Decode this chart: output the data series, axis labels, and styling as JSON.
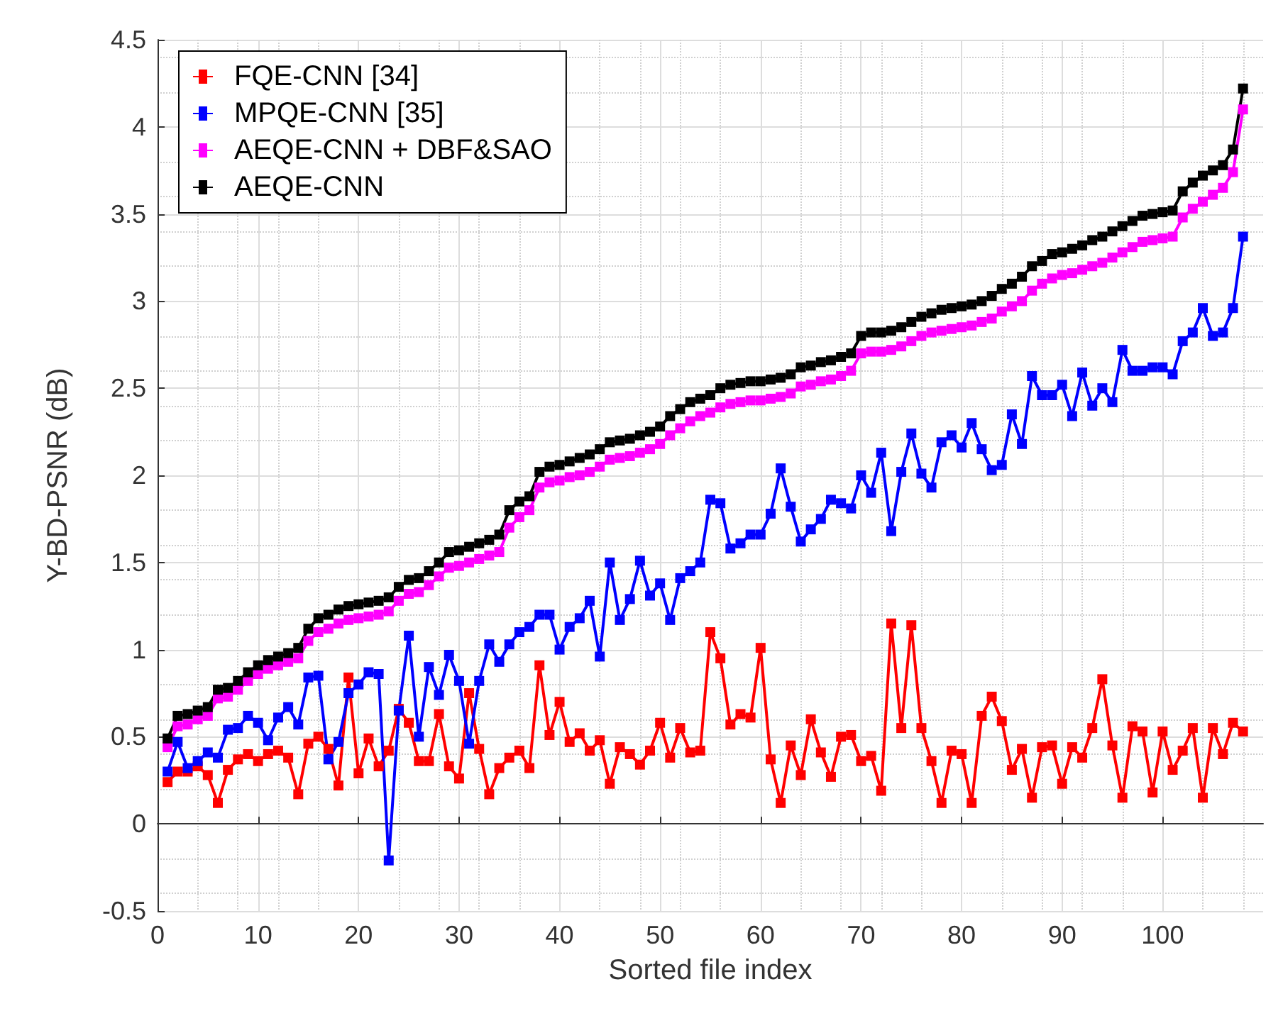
{
  "chart_data": {
    "type": "line",
    "xlabel": "Sorted file index",
    "ylabel": "Y-BD-PSNR (dB)",
    "x": [
      1,
      2,
      3,
      4,
      5,
      6,
      7,
      8,
      9,
      10,
      11,
      12,
      13,
      14,
      15,
      16,
      17,
      18,
      19,
      20,
      21,
      22,
      23,
      24,
      25,
      26,
      27,
      28,
      29,
      30,
      31,
      32,
      33,
      34,
      35,
      36,
      37,
      38,
      39,
      40,
      41,
      42,
      43,
      44,
      45,
      46,
      47,
      48,
      49,
      50,
      51,
      52,
      53,
      54,
      55,
      56,
      57,
      58,
      59,
      60,
      61,
      62,
      63,
      64,
      65,
      66,
      67,
      68,
      69,
      70,
      71,
      72,
      73,
      74,
      75,
      76,
      77,
      78,
      79,
      80,
      81,
      82,
      83,
      84,
      85,
      86,
      87,
      88,
      89,
      90,
      91,
      92,
      93,
      94,
      95,
      96,
      97,
      98,
      99,
      100,
      101,
      102,
      103,
      104,
      105,
      106,
      107,
      108
    ],
    "series": [
      {
        "name": "FQE-CNN [34]",
        "color": "#ff0000",
        "values": [
          0.24,
          0.3,
          0.3,
          0.33,
          0.28,
          0.12,
          0.31,
          0.37,
          0.4,
          0.36,
          0.4,
          0.42,
          0.38,
          0.17,
          0.46,
          0.5,
          0.43,
          0.22,
          0.84,
          0.29,
          0.49,
          0.33,
          0.42,
          0.66,
          0.58,
          0.36,
          0.36,
          0.63,
          0.33,
          0.26,
          0.75,
          0.43,
          0.17,
          0.32,
          0.38,
          0.42,
          0.32,
          0.91,
          0.51,
          0.7,
          0.47,
          0.52,
          0.42,
          0.48,
          0.23,
          0.44,
          0.4,
          0.34,
          0.42,
          0.58,
          0.38,
          0.55,
          0.41,
          0.42,
          1.1,
          0.95,
          0.57,
          0.63,
          0.61,
          1.01,
          0.37,
          0.12,
          0.45,
          0.28,
          0.6,
          0.41,
          0.27,
          0.5,
          0.51,
          0.36,
          0.39,
          0.19,
          1.15,
          0.55,
          1.14,
          0.55,
          0.36,
          0.12,
          0.42,
          0.4,
          0.12,
          0.62,
          0.73,
          0.59,
          0.31,
          0.43,
          0.15,
          0.44,
          0.45,
          0.23,
          0.44,
          0.38,
          0.55,
          0.83,
          0.45,
          0.15,
          0.56,
          0.53,
          0.18,
          0.53,
          0.31,
          0.42,
          0.55,
          0.15,
          0.55,
          0.4,
          0.58,
          0.53
        ]
      },
      {
        "name": "MPQE-CNN [35]",
        "color": "#0000ff",
        "values": [
          0.3,
          0.47,
          0.32,
          0.36,
          0.41,
          0.38,
          0.54,
          0.55,
          0.62,
          0.58,
          0.48,
          0.61,
          0.67,
          0.57,
          0.84,
          0.85,
          0.37,
          0.47,
          0.75,
          0.8,
          0.87,
          0.86,
          -0.21,
          0.65,
          1.08,
          0.5,
          0.9,
          0.74,
          0.97,
          0.82,
          0.46,
          0.82,
          1.03,
          0.93,
          1.03,
          1.1,
          1.13,
          1.2,
          1.2,
          1.0,
          1.13,
          1.18,
          1.28,
          0.96,
          1.5,
          1.17,
          1.29,
          1.51,
          1.31,
          1.38,
          1.17,
          1.41,
          1.45,
          1.5,
          1.86,
          1.84,
          1.58,
          1.61,
          1.66,
          1.66,
          1.78,
          2.04,
          1.82,
          1.62,
          1.69,
          1.75,
          1.86,
          1.84,
          1.81,
          2.0,
          1.9,
          2.13,
          1.68,
          2.02,
          2.24,
          2.01,
          1.93,
          2.19,
          2.23,
          2.16,
          2.3,
          2.15,
          2.03,
          2.06,
          2.35,
          2.18,
          2.57,
          2.46,
          2.46,
          2.52,
          2.34,
          2.59,
          2.4,
          2.5,
          2.42,
          2.72,
          2.6,
          2.6,
          2.62,
          2.62,
          2.58,
          2.77,
          2.82,
          2.96,
          2.8,
          2.82,
          2.96,
          3.37
        ]
      },
      {
        "name": "AEQE-CNN + DBF&SAO",
        "color": "#ff00ff",
        "values": [
          0.44,
          0.56,
          0.57,
          0.6,
          0.62,
          0.72,
          0.73,
          0.77,
          0.82,
          0.86,
          0.89,
          0.91,
          0.93,
          0.95,
          1.05,
          1.1,
          1.12,
          1.15,
          1.17,
          1.18,
          1.19,
          1.2,
          1.22,
          1.28,
          1.32,
          1.33,
          1.37,
          1.42,
          1.47,
          1.48,
          1.5,
          1.52,
          1.54,
          1.56,
          1.7,
          1.76,
          1.8,
          1.93,
          1.96,
          1.97,
          1.99,
          2.0,
          2.02,
          2.05,
          2.09,
          2.1,
          2.11,
          2.13,
          2.15,
          2.18,
          2.23,
          2.27,
          2.31,
          2.34,
          2.36,
          2.39,
          2.41,
          2.42,
          2.43,
          2.43,
          2.44,
          2.45,
          2.47,
          2.51,
          2.52,
          2.54,
          2.55,
          2.57,
          2.6,
          2.7,
          2.71,
          2.71,
          2.72,
          2.74,
          2.77,
          2.8,
          2.82,
          2.83,
          2.84,
          2.85,
          2.86,
          2.88,
          2.9,
          2.94,
          2.97,
          3.0,
          3.06,
          3.1,
          3.13,
          3.15,
          3.16,
          3.18,
          3.2,
          3.22,
          3.25,
          3.28,
          3.31,
          3.34,
          3.35,
          3.36,
          3.37,
          3.48,
          3.53,
          3.57,
          3.61,
          3.65,
          3.74,
          4.1
        ]
      },
      {
        "name": "AEQE-CNN",
        "color": "#000000",
        "values": [
          0.49,
          0.62,
          0.63,
          0.65,
          0.67,
          0.77,
          0.78,
          0.82,
          0.87,
          0.91,
          0.94,
          0.96,
          0.98,
          1.01,
          1.12,
          1.18,
          1.2,
          1.23,
          1.25,
          1.26,
          1.27,
          1.28,
          1.3,
          1.36,
          1.4,
          1.41,
          1.45,
          1.5,
          1.56,
          1.57,
          1.59,
          1.61,
          1.63,
          1.66,
          1.8,
          1.85,
          1.88,
          2.02,
          2.05,
          2.06,
          2.08,
          2.1,
          2.12,
          2.15,
          2.19,
          2.2,
          2.21,
          2.23,
          2.25,
          2.28,
          2.34,
          2.38,
          2.42,
          2.44,
          2.46,
          2.5,
          2.52,
          2.53,
          2.54,
          2.54,
          2.55,
          2.56,
          2.58,
          2.62,
          2.63,
          2.65,
          2.66,
          2.68,
          2.7,
          2.8,
          2.82,
          2.82,
          2.83,
          2.85,
          2.88,
          2.91,
          2.93,
          2.95,
          2.96,
          2.97,
          2.98,
          3.0,
          3.03,
          3.07,
          3.1,
          3.14,
          3.2,
          3.23,
          3.27,
          3.28,
          3.3,
          3.32,
          3.35,
          3.37,
          3.4,
          3.43,
          3.46,
          3.49,
          3.5,
          3.51,
          3.52,
          3.63,
          3.68,
          3.72,
          3.75,
          3.78,
          3.87,
          4.22
        ]
      }
    ],
    "xlim": [
      0,
      110
    ],
    "xticks": [
      0,
      10,
      20,
      30,
      40,
      50,
      60,
      70,
      80,
      90,
      100
    ],
    "ylim": [
      -0.5,
      4.5
    ],
    "yticks": [
      -0.5,
      0,
      0.5,
      1,
      1.5,
      2,
      2.5,
      3,
      3.5,
      4,
      4.5
    ],
    "grid": true,
    "legend": "top left",
    "marker": "square",
    "line_style": "solid"
  }
}
